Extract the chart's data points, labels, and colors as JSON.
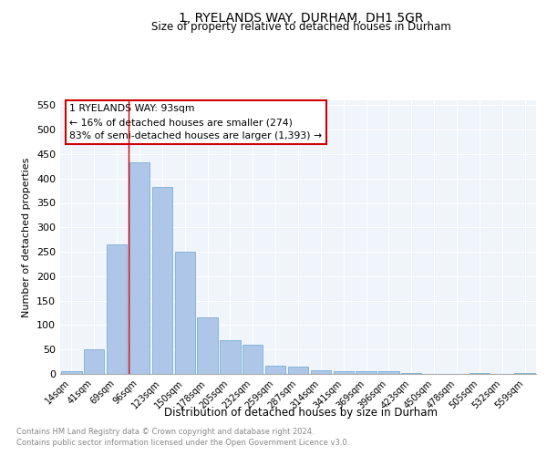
{
  "title": "1, RYELANDS WAY, DURHAM, DH1 5GR",
  "subtitle": "Size of property relative to detached houses in Durham",
  "xlabel": "Distribution of detached houses by size in Durham",
  "ylabel": "Number of detached properties",
  "footnote1": "Contains HM Land Registry data © Crown copyright and database right 2024.",
  "footnote2": "Contains public sector information licensed under the Open Government Licence v3.0.",
  "categories": [
    "14sqm",
    "41sqm",
    "69sqm",
    "96sqm",
    "123sqm",
    "150sqm",
    "178sqm",
    "205sqm",
    "232sqm",
    "259sqm",
    "287sqm",
    "314sqm",
    "341sqm",
    "369sqm",
    "396sqm",
    "423sqm",
    "450sqm",
    "478sqm",
    "505sqm",
    "532sqm",
    "559sqm"
  ],
  "values": [
    5,
    50,
    265,
    433,
    383,
    250,
    115,
    70,
    60,
    16,
    15,
    7,
    6,
    6,
    5,
    2,
    0,
    0,
    2,
    0,
    2
  ],
  "bar_color": "#aec6e8",
  "bar_edge_color": "#7aafd4",
  "grid_color": "#d0d8e8",
  "vline_x_index": 3,
  "vline_color": "#cc0000",
  "annotation_text": "1 RYELANDS WAY: 93sqm\n← 16% of detached houses are smaller (274)\n83% of semi-detached houses are larger (1,393) →",
  "annotation_box_edge": "#cc0000",
  "bg_color": "#f0f4fb",
  "ylim": [
    0,
    560
  ],
  "yticks": [
    0,
    50,
    100,
    150,
    200,
    250,
    300,
    350,
    400,
    450,
    500,
    550
  ]
}
